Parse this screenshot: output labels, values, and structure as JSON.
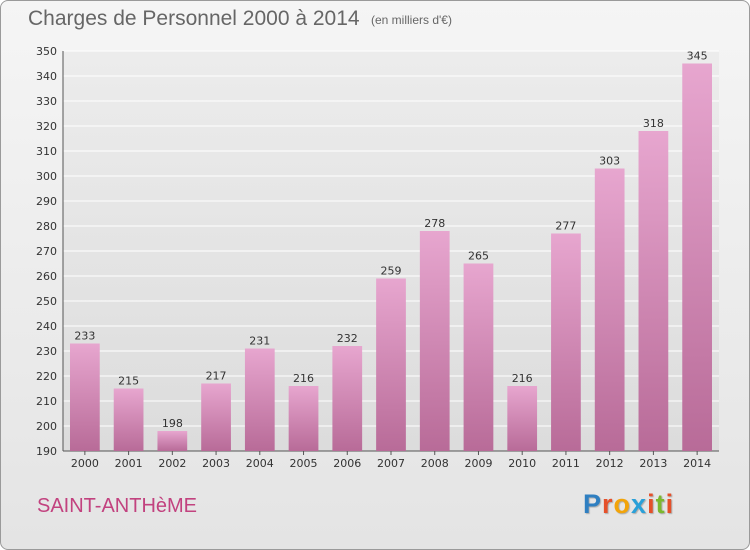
{
  "header": {
    "title": "Charges de Personnel 2000 à 2014",
    "subtitle": "(en milliers d'€)"
  },
  "footer": {
    "commune": "SAINT-ANTHèME",
    "logo_letters": [
      "P",
      "r",
      "o",
      "x",
      "i",
      "t",
      "i"
    ],
    "logo_colors": [
      "#2f7fc1",
      "#e5502a",
      "#f2a40a",
      "#2aa0d8",
      "#e5502a",
      "#7cb82f",
      "#e5502a"
    ]
  },
  "colors": {
    "bar_top": "#e7a6cf",
    "bar_bottom": "#b86b98",
    "grid": "#ffffff",
    "title": "#666666",
    "commune": "#c2427f"
  },
  "chart_data": {
    "type": "bar",
    "categories": [
      "2000",
      "2001",
      "2002",
      "2003",
      "2004",
      "2005",
      "2006",
      "2007",
      "2008",
      "2009",
      "2010",
      "2011",
      "2012",
      "2013",
      "2014"
    ],
    "values": [
      233,
      215,
      198,
      217,
      231,
      216,
      232,
      259,
      278,
      265,
      216,
      277,
      303,
      318,
      345
    ],
    "title": "Charges de Personnel 2000 à 2014",
    "subtitle": "(en milliers d'€)",
    "xlabel": "",
    "ylabel": "",
    "ylim": [
      190,
      350
    ],
    "yticks": [
      190,
      200,
      210,
      220,
      230,
      240,
      250,
      260,
      270,
      280,
      290,
      300,
      310,
      320,
      330,
      340,
      350
    ],
    "grid": true,
    "data_labels": true
  }
}
